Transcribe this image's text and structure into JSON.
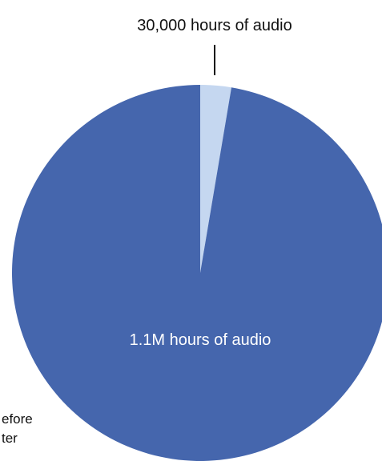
{
  "chart_data": {
    "type": "pie",
    "title": "",
    "slices": [
      {
        "label": "30,000 hours of audio",
        "value": 30000,
        "color": "#c5d7f0"
      },
      {
        "label": "1.1M hours of audio",
        "value": 1100000,
        "color": "#4566ad"
      }
    ],
    "legend": {
      "placement": "bottom-left",
      "entries": [
        "efore",
        "ter"
      ]
    }
  }
}
